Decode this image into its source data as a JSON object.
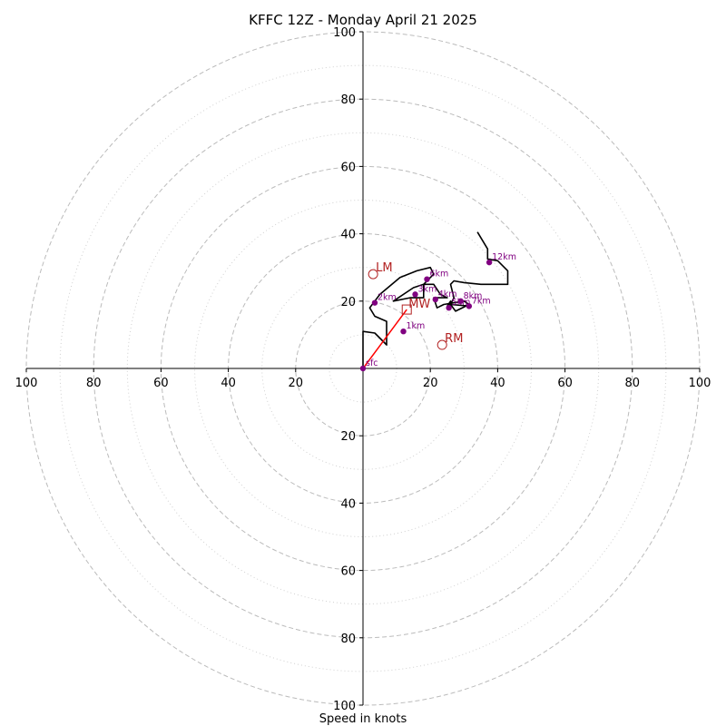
{
  "chart_data": {
    "type": "scatter",
    "title": "KFFC 12Z - Monday April 21 2025",
    "xlabel": "Speed in knots",
    "ylabel": "",
    "xlim": [
      -100,
      100
    ],
    "ylim": [
      -100,
      100
    ],
    "x_tick_values": [
      -100,
      -80,
      -60,
      -40,
      -20,
      20,
      40,
      60,
      80,
      100
    ],
    "x_tick_labels": [
      "100",
      "80",
      "60",
      "40",
      "20",
      "20",
      "40",
      "60",
      "80",
      "100"
    ],
    "y_tick_values": [
      100,
      80,
      60,
      40,
      20,
      -20,
      -40,
      -60,
      -80,
      -100
    ],
    "y_tick_labels": [
      "100",
      "80",
      "60",
      "40",
      "20",
      "20",
      "40",
      "60",
      "80",
      "100"
    ],
    "range_rings_major": [
      20,
      40,
      60,
      80,
      100
    ],
    "range_rings_minor": [
      10,
      30,
      50,
      70,
      90
    ],
    "colors": {
      "hodograph": "#000000",
      "height_markers": "#800080",
      "storm_motion": "#b22222",
      "mean_wind_vector": "#ff0000",
      "rings_major": "#bbbbbb",
      "rings_minor": "#d0d0d0"
    },
    "hodograph": [
      [
        0,
        0
      ],
      [
        0,
        11
      ],
      [
        3.5,
        10.5
      ],
      [
        7,
        7
      ],
      [
        7,
        14
      ],
      [
        3.5,
        15.5
      ],
      [
        2,
        18
      ],
      [
        5,
        22
      ],
      [
        11,
        27
      ],
      [
        16,
        29
      ],
      [
        20,
        30
      ],
      [
        21,
        28
      ],
      [
        18,
        25
      ],
      [
        15,
        24
      ],
      [
        9,
        20
      ],
      [
        14,
        21
      ],
      [
        18,
        21
      ],
      [
        18,
        25
      ],
      [
        21,
        25
      ],
      [
        23,
        22
      ],
      [
        25,
        21
      ],
      [
        21,
        21
      ],
      [
        22,
        18
      ],
      [
        24,
        19
      ],
      [
        30,
        20
      ],
      [
        31.5,
        19
      ],
      [
        27.5,
        17
      ],
      [
        26,
        19
      ],
      [
        32,
        18.5
      ],
      [
        26,
        19
      ],
      [
        26,
        20
      ],
      [
        25,
        18.5
      ],
      [
        26,
        19
      ],
      [
        27,
        21
      ],
      [
        26,
        25
      ],
      [
        27,
        26
      ],
      [
        30,
        25.5
      ],
      [
        35,
        25
      ],
      [
        43,
        25
      ],
      [
        43,
        29
      ],
      [
        40,
        32
      ],
      [
        37,
        32.5
      ],
      [
        37,
        35.5
      ],
      [
        34,
        40.5
      ]
    ],
    "height_markers": [
      {
        "label": "sfc",
        "u": 0,
        "v": 0
      },
      {
        "label": "1km",
        "u": 12,
        "v": 11
      },
      {
        "label": "2km",
        "u": 3.5,
        "v": 19.5
      },
      {
        "label": "3km",
        "u": 15.5,
        "v": 22
      },
      {
        "label": "4km",
        "u": 21.5,
        "v": 20.5
      },
      {
        "label": "5km",
        "u": 25.5,
        "v": 18
      },
      {
        "label": "6km",
        "u": 19,
        "v": 26.5
      },
      {
        "label": "7km",
        "u": 31.5,
        "v": 18.5
      },
      {
        "label": "8km",
        "u": 29,
        "v": 20
      },
      {
        "label": "12km",
        "u": 37.5,
        "v": 31.5
      }
    ],
    "storm_motion": [
      {
        "label": "LM",
        "u": 3,
        "v": 28
      },
      {
        "label": "RM",
        "u": 23.5,
        "v": 7
      }
    ],
    "mean_wind": {
      "label": "MW",
      "u": 13,
      "v": 17.5
    }
  }
}
